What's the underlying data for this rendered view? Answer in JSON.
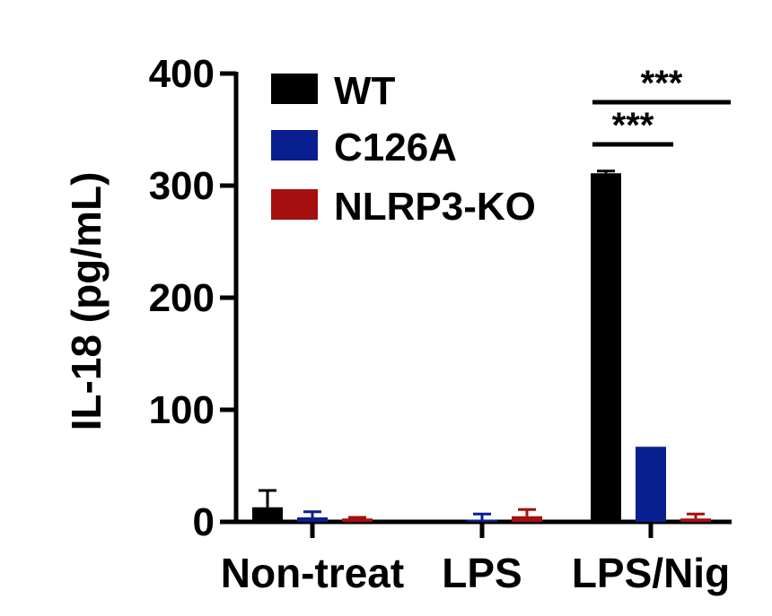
{
  "chart_data": {
    "type": "bar",
    "title": "",
    "xlabel": "",
    "ylabel": "IL-18 (pg/mL)",
    "ylim": [
      0,
      400
    ],
    "yticks": [
      "0",
      "100",
      "200",
      "300",
      "400"
    ],
    "categories": [
      "Non-treat",
      "LPS",
      "LPS/Nig"
    ],
    "series": [
      {
        "name": "WT",
        "color": "#000000",
        "values": [
          13,
          0,
          311
        ],
        "errors": [
          15,
          0,
          2
        ]
      },
      {
        "name": "C126A",
        "color": "#0a1f8f",
        "values": [
          4,
          2,
          67
        ],
        "errors": [
          5,
          5,
          0
        ]
      },
      {
        "name": "NLRP3-KO",
        "color": "#a50f0f",
        "values": [
          3,
          5,
          3
        ],
        "errors": [
          1,
          6,
          4
        ]
      }
    ],
    "legend_position": "top-left",
    "grid": false,
    "significance": [
      {
        "label": "***",
        "category": "LPS/Nig",
        "from_series": "WT",
        "to_series": "NLRP3-KO"
      },
      {
        "label": "***",
        "category": "LPS/Nig",
        "from_series": "WT",
        "to_series": "C126A"
      }
    ]
  }
}
